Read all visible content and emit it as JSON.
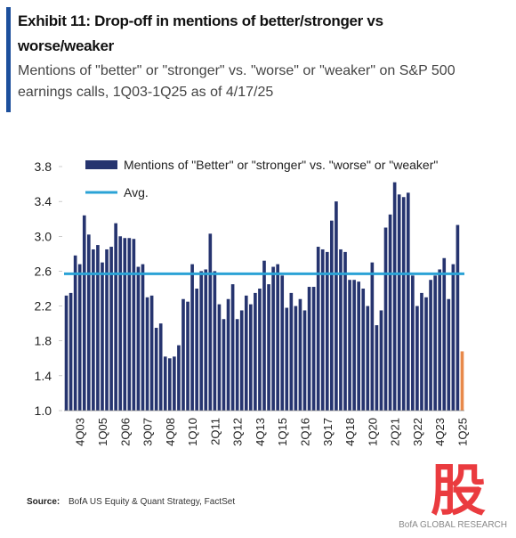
{
  "chart_data": {
    "type": "bar",
    "title": "Exhibit 11: Drop-off in mentions of better/stronger vs worse/weaker",
    "subtitle": "Mentions of \"better\" or \"stronger\" vs. \"worse\" or \"weaker\" on S&P 500 earnings calls, 1Q03-1Q25 as of 4/17/25",
    "source_label": "Source:",
    "source": "BofA US Equity & Quant Strategy, FactSet",
    "footer": "BofA GLOBAL RESEARCH",
    "watermark": "股",
    "categories": [
      null,
      null,
      null,
      "4Q03",
      null,
      null,
      null,
      null,
      "1Q05",
      null,
      null,
      null,
      null,
      "2Q06",
      null,
      null,
      null,
      null,
      "3Q07",
      null,
      null,
      null,
      null,
      "4Q08",
      null,
      null,
      null,
      null,
      "1Q10",
      null,
      null,
      null,
      null,
      "2Q11",
      null,
      null,
      null,
      null,
      "3Q12",
      null,
      null,
      null,
      null,
      "4Q13",
      null,
      null,
      null,
      null,
      "1Q15",
      null,
      null,
      null,
      null,
      "2Q16",
      null,
      null,
      null,
      null,
      "3Q17",
      null,
      null,
      null,
      null,
      "4Q18",
      null,
      null,
      null,
      null,
      "1Q20",
      null,
      null,
      null,
      null,
      "2Q21",
      null,
      null,
      null,
      null,
      "3Q22",
      null,
      null,
      null,
      null,
      "4Q23",
      null,
      null,
      null,
      null,
      "1Q25"
    ],
    "series": [
      {
        "name": "Mentions of \"Better\" or \"stronger\" vs. \"worse\" or \"weaker\"",
        "color": "#26346f",
        "last_color": "#e8894a",
        "values": [
          2.32,
          2.35,
          2.78,
          2.68,
          3.24,
          3.02,
          2.85,
          2.9,
          2.7,
          2.85,
          2.88,
          3.15,
          3.0,
          2.98,
          2.98,
          2.97,
          2.65,
          2.68,
          2.3,
          2.32,
          1.95,
          2.0,
          1.62,
          1.6,
          1.62,
          1.75,
          2.28,
          2.25,
          2.68,
          2.4,
          2.6,
          2.62,
          3.03,
          2.6,
          2.22,
          2.05,
          2.28,
          2.45,
          2.05,
          2.15,
          2.32,
          2.22,
          2.35,
          2.4,
          2.72,
          2.45,
          2.65,
          2.68,
          2.55,
          2.18,
          2.35,
          2.2,
          2.28,
          2.15,
          2.42,
          2.42,
          2.88,
          2.85,
          2.82,
          3.18,
          3.4,
          2.85,
          2.82,
          2.5,
          2.5,
          2.48,
          2.4,
          2.2,
          2.7,
          1.98,
          2.15,
          3.1,
          3.25,
          3.62,
          3.48,
          3.45,
          3.5,
          2.55,
          2.2,
          2.35,
          2.3,
          2.5,
          2.55,
          2.62,
          2.75,
          2.28,
          2.68,
          3.13,
          1.68
        ]
      },
      {
        "name": "Avg.",
        "type": "hline",
        "color": "#2ba3d6",
        "value": 2.57
      }
    ],
    "ylim": [
      1.0,
      3.8
    ],
    "yticks": [
      {
        "value": 1.0,
        "label": "1.0"
      },
      1.4,
      {
        "value": 1.8,
        "label": "1.8"
      },
      {
        "value": 2.2,
        "label": "2.2"
      },
      {
        "value": 2.6,
        "label": "2.6"
      },
      {
        "value": 3.0,
        "label": "3.0"
      },
      3.4,
      3.8
    ],
    "grid": false
  }
}
